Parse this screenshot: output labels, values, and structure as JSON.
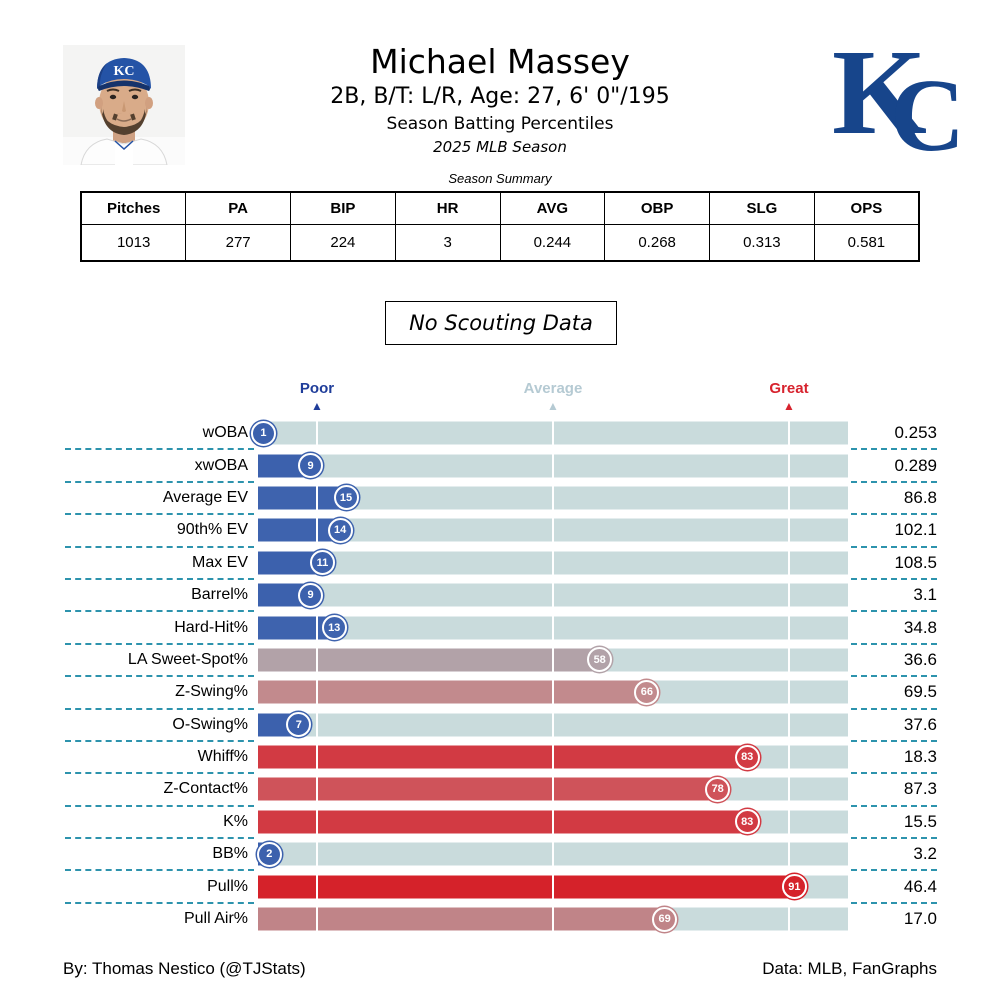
{
  "header": {
    "title": "Michael Massey",
    "subtitle": "2B, B/T: L/R, Age: 27, 6' 0\"/195",
    "line3": "Season Batting Percentiles",
    "line4": "2025 MLB Season",
    "team_logo": {
      "k": "K",
      "c": "C"
    },
    "cap_text": "KC"
  },
  "summary_table": {
    "title": "Season Summary",
    "columns": [
      "Pitches",
      "PA",
      "BIP",
      "HR",
      "AVG",
      "OBP",
      "SLG",
      "OPS"
    ],
    "values": [
      "1013",
      "277",
      "224",
      "3",
      "0.244",
      "0.268",
      "0.313",
      "0.581"
    ]
  },
  "scouting_note": "No Scouting Data",
  "chart_data": {
    "type": "bar",
    "orientation": "horizontal",
    "title": "Season Batting Percentiles",
    "axis_range": [
      0,
      100
    ],
    "gridlines_pct": [
      10,
      50,
      90
    ],
    "track_color": "#c9dbdc",
    "separator_color": "#2d93ad",
    "axis_markers": [
      {
        "label": "Poor",
        "position_pct": 10,
        "color": "#1f3d9a"
      },
      {
        "label": "Average",
        "position_pct": 50,
        "color": "#b5cad3"
      },
      {
        "label": "Great",
        "position_pct": 90,
        "color": "#d7232e"
      }
    ],
    "rows": [
      {
        "label": "wOBA",
        "percentile": 1,
        "value": "0.253",
        "color": "#3c61ad"
      },
      {
        "label": "xwOBA",
        "percentile": 9,
        "value": "0.289",
        "color": "#3c61ad"
      },
      {
        "label": "Average EV",
        "percentile": 15,
        "value": "86.8",
        "color": "#3e63ae"
      },
      {
        "label": "90th% EV",
        "percentile": 14,
        "value": "102.1",
        "color": "#3e63ae"
      },
      {
        "label": "Max EV",
        "percentile": 11,
        "value": "108.5",
        "color": "#3c61ad"
      },
      {
        "label": "Barrel%",
        "percentile": 9,
        "value": "3.1",
        "color": "#3c61ad"
      },
      {
        "label": "Hard-Hit%",
        "percentile": 13,
        "value": "34.8",
        "color": "#3e63ae"
      },
      {
        "label": "LA Sweet-Spot%",
        "percentile": 58,
        "value": "36.6",
        "color": "#b2a2a8"
      },
      {
        "label": "Z-Swing%",
        "percentile": 66,
        "value": "69.5",
        "color": "#c28a8d"
      },
      {
        "label": "O-Swing%",
        "percentile": 7,
        "value": "37.6",
        "color": "#3c61ad"
      },
      {
        "label": "Whiff%",
        "percentile": 83,
        "value": "18.3",
        "color": "#d23a43"
      },
      {
        "label": "Z-Contact%",
        "percentile": 78,
        "value": "87.3",
        "color": "#cf535a"
      },
      {
        "label": "K%",
        "percentile": 83,
        "value": "15.5",
        "color": "#d23a43"
      },
      {
        "label": "BB%",
        "percentile": 2,
        "value": "3.2",
        "color": "#3c61ad"
      },
      {
        "label": "Pull%",
        "percentile": 91,
        "value": "46.4",
        "color": "#d5222a"
      },
      {
        "label": "Pull Air%",
        "percentile": 69,
        "value": "17.0",
        "color": "#c08488"
      }
    ]
  },
  "footer": {
    "left": "By: Thomas Nestico (@TJStats)",
    "right": "Data: MLB, FanGraphs"
  }
}
